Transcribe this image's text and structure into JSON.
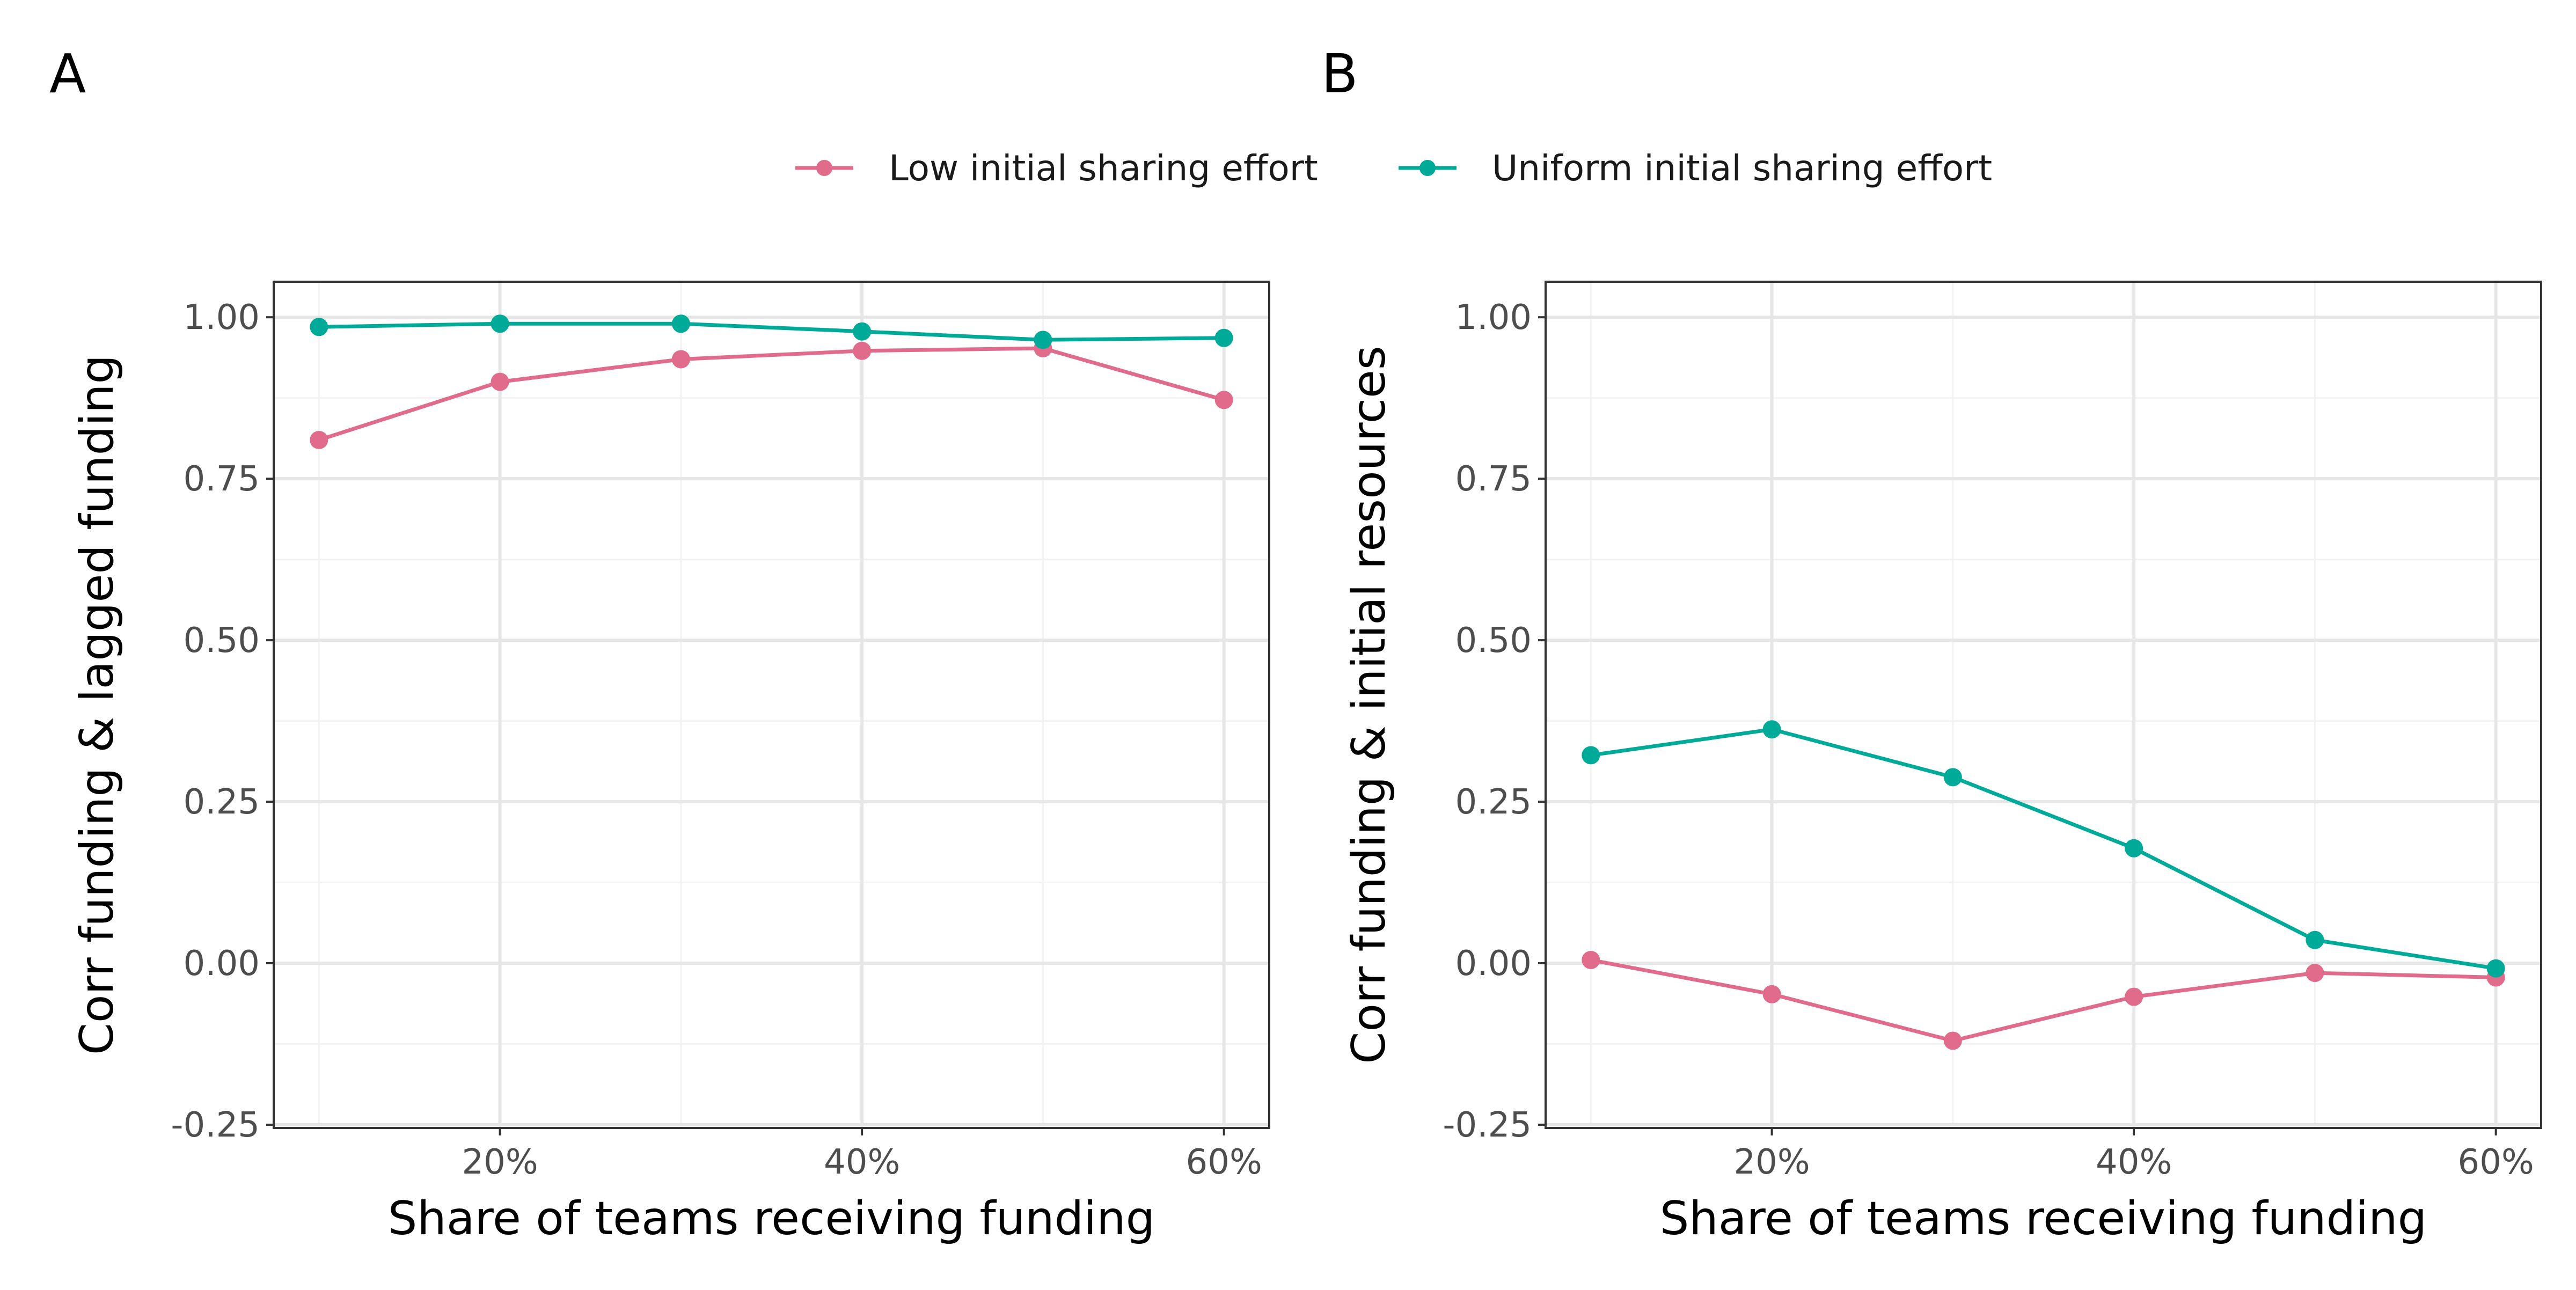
{
  "legend": {
    "position": "top-center",
    "entries": [
      {
        "label": "Low initial sharing effort",
        "color": "#e06b8b"
      },
      {
        "label": "Uniform initial sharing effort",
        "color": "#00aa99"
      }
    ]
  },
  "chart_data": [
    {
      "panel_tag": "A",
      "type": "line",
      "x": [
        0.1,
        0.2,
        0.3,
        0.4,
        0.5,
        0.6
      ],
      "x_ticks": [
        0.2,
        0.4,
        0.6
      ],
      "x_tick_labels": [
        "20%",
        "40%",
        "60%"
      ],
      "xlim": [
        0.075,
        0.625
      ],
      "xlabel": "Share of teams receiving funding",
      "ylabel": "Corr funding & lagged funding",
      "ylim": [
        -0.255,
        1.055
      ],
      "y_ticks": [
        -0.25,
        0,
        0.25,
        0.5,
        0.75,
        1
      ],
      "y_tick_labels": [
        "-0.25",
        "0.00",
        "0.25",
        "0.50",
        "0.75",
        "1.00"
      ],
      "grid": true,
      "series": [
        {
          "name": "Low initial sharing effort",
          "color": "#e06b8b",
          "values": [
            0.81,
            0.9,
            0.935,
            0.948,
            0.952,
            0.872
          ]
        },
        {
          "name": "Uniform initial sharing effort",
          "color": "#00aa99",
          "values": [
            0.985,
            0.99,
            0.99,
            0.978,
            0.965,
            0.968
          ]
        }
      ]
    },
    {
      "panel_tag": "B",
      "type": "line",
      "x": [
        0.1,
        0.2,
        0.3,
        0.4,
        0.5,
        0.6
      ],
      "x_ticks": [
        0.2,
        0.4,
        0.6
      ],
      "x_tick_labels": [
        "20%",
        "40%",
        "60%"
      ],
      "xlim": [
        0.075,
        0.625
      ],
      "xlabel": "Share of teams receiving funding",
      "ylabel": "Corr funding & initial resources",
      "ylim": [
        -0.255,
        1.055
      ],
      "y_ticks": [
        -0.25,
        0,
        0.25,
        0.5,
        0.75,
        1
      ],
      "y_tick_labels": [
        "-0.25",
        "0.00",
        "0.25",
        "0.50",
        "0.75",
        "1.00"
      ],
      "grid": true,
      "series": [
        {
          "name": "Low initial sharing effort",
          "color": "#e06b8b",
          "values": [
            0.005,
            -0.048,
            -0.12,
            -0.052,
            -0.015,
            -0.022
          ]
        },
        {
          "name": "Uniform initial sharing effort",
          "color": "#00aa99",
          "values": [
            0.322,
            0.362,
            0.288,
            0.178,
            0.036,
            -0.008
          ]
        }
      ]
    }
  ]
}
